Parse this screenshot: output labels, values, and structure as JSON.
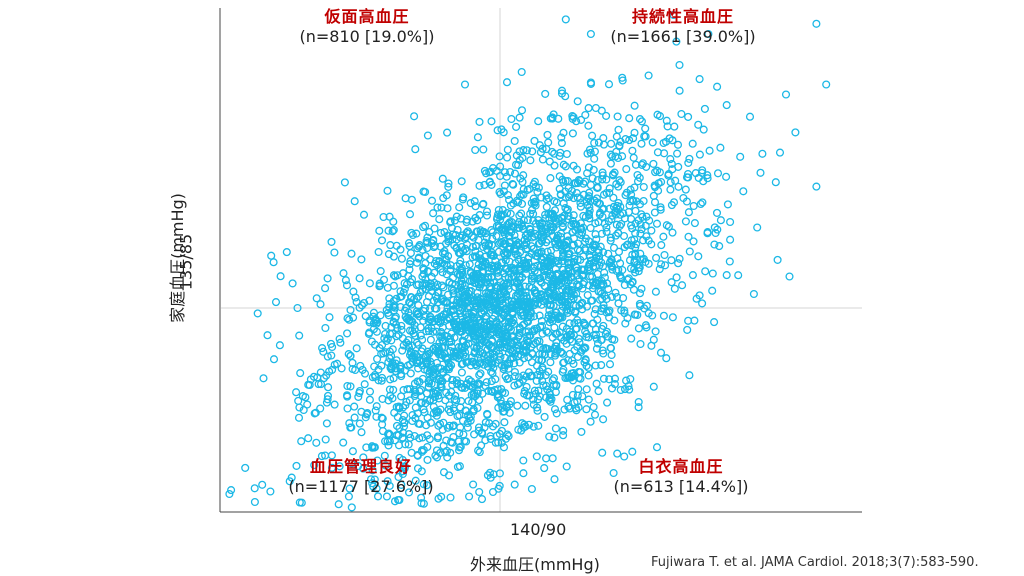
{
  "chart_data": {
    "type": "scatter",
    "xlabel": "外来血圧(mmHg)",
    "ylabel": "家庭血圧(mmHg)",
    "x_reference_label": "140/90",
    "y_reference_label": "135/85",
    "ticks_shown": false,
    "grid": false,
    "point_color": "#1cb8e6",
    "quadrants": [
      {
        "position": "top-left",
        "name": "仮面高血圧",
        "stat": "(n=810 [19.0%])"
      },
      {
        "position": "top-right",
        "name": "持続性高血圧",
        "stat": "(n=1661 [39.0%])"
      },
      {
        "position": "bottom-left",
        "name": "血圧管理良好",
        "stat": "(n=1177 [27.6%])"
      },
      {
        "position": "bottom-right",
        "name": "白衣高血圧",
        "stat": "(n=613 [14.4%])"
      }
    ],
    "notable_points": [
      {
        "x": -1.6,
        "y": 0.04
      },
      {
        "x": -1.64,
        "y": -1.24
      },
      {
        "x": -1.42,
        "y": -0.9
      },
      {
        "x": -1.37,
        "y": -0.88
      },
      {
        "x": -1.2,
        "y": -1.08
      },
      {
        "x": -1.06,
        "y": -1.05
      },
      {
        "x": 0.47,
        "y": 1.95
      },
      {
        "x": 1.24,
        "y": 1.98
      },
      {
        "x": 1.26,
        "y": 1.8
      },
      {
        "x": 2.26,
        "y": 1.92
      },
      {
        "x": 2.33,
        "y": 1.51
      },
      {
        "x": 2.26,
        "y": 0.82
      },
      {
        "x": 2.0,
        "y": 1.05
      },
      {
        "x": 1.97,
        "y": 0.85
      },
      {
        "x": 0.99,
        "y": -0.67
      },
      {
        "x": 0.48,
        "y": -0.62
      },
      {
        "x": -0.25,
        "y": 1.51
      },
      {
        "x": -0.34,
        "y": -0.91
      },
      {
        "x": -0.03,
        "y": -0.91
      }
    ]
  },
  "citation": "Fujiwara T. et al. JAMA Cardiol. 2018;3(7):583-590."
}
